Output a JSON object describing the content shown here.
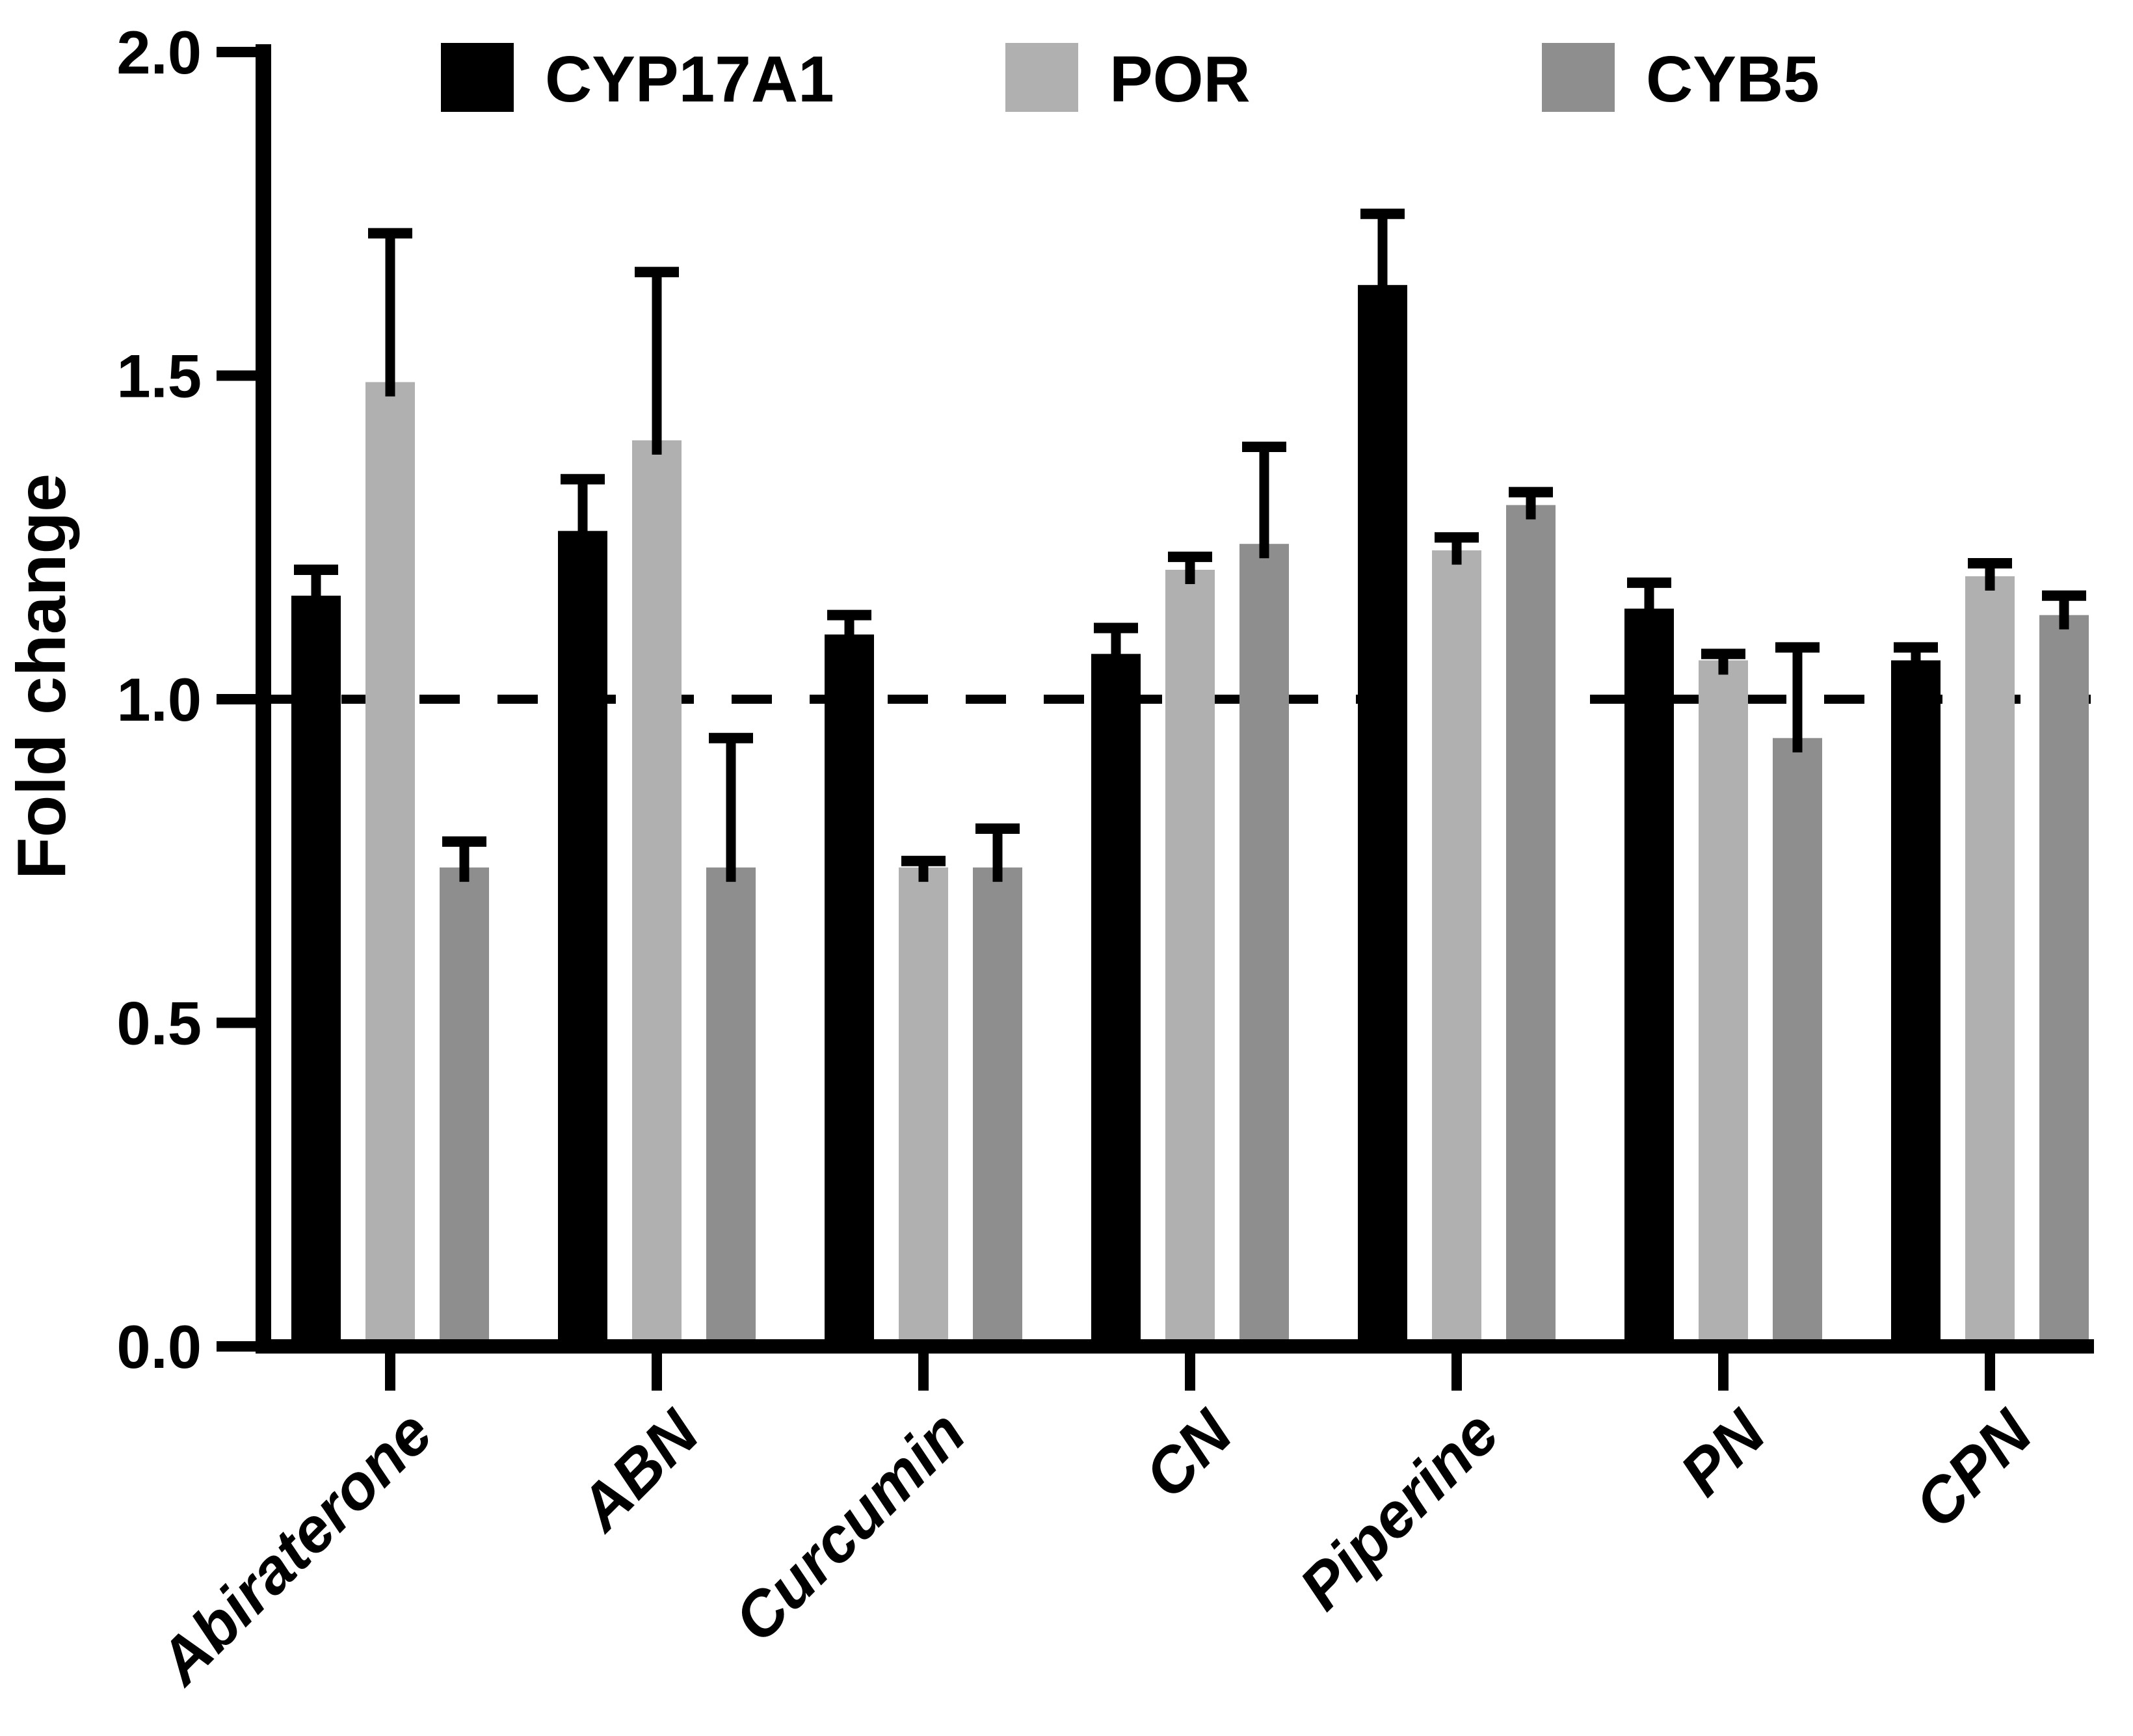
{
  "page": {
    "background": "#ffffff"
  },
  "chart_data": {
    "type": "bar",
    "title": "",
    "xlabel": "",
    "ylabel": "Fold change",
    "ylim": [
      0.0,
      2.0
    ],
    "yticks": [
      0.0,
      0.5,
      1.0,
      1.5,
      2.0
    ],
    "ytick_labels": [
      "0.0",
      "0.5",
      "1.0",
      "1.5",
      "2.0"
    ],
    "grid": false,
    "legend_position": "top",
    "reference_line_y": 1.0,
    "reference_line_style": "dashed",
    "error_bars": "upper-sd",
    "bar_edge": "none",
    "axis_color": "#000000",
    "categories": [
      "Abiraterone",
      "ABN",
      "Curcumin",
      "CN",
      "Piperine",
      "PN",
      "CPN"
    ],
    "series": [
      {
        "name": "CYP17A1",
        "color": "#000000",
        "values": [
          1.16,
          1.26,
          1.1,
          1.07,
          1.64,
          1.14,
          1.06
        ],
        "errors": [
          0.04,
          0.08,
          0.03,
          0.04,
          0.11,
          0.04,
          0.02
        ]
      },
      {
        "name": "POR",
        "color": "#b0b0b0",
        "values": [
          1.49,
          1.4,
          0.74,
          1.2,
          1.23,
          1.06,
          1.19
        ],
        "errors": [
          0.23,
          0.26,
          0.01,
          0.02,
          0.02,
          0.01,
          0.02
        ]
      },
      {
        "name": "CYB5",
        "color": "#8e8e8e",
        "values": [
          0.74,
          0.74,
          0.74,
          1.24,
          1.3,
          0.94,
          1.13
        ],
        "errors": [
          0.04,
          0.2,
          0.06,
          0.15,
          0.02,
          0.14,
          0.03
        ]
      }
    ]
  }
}
